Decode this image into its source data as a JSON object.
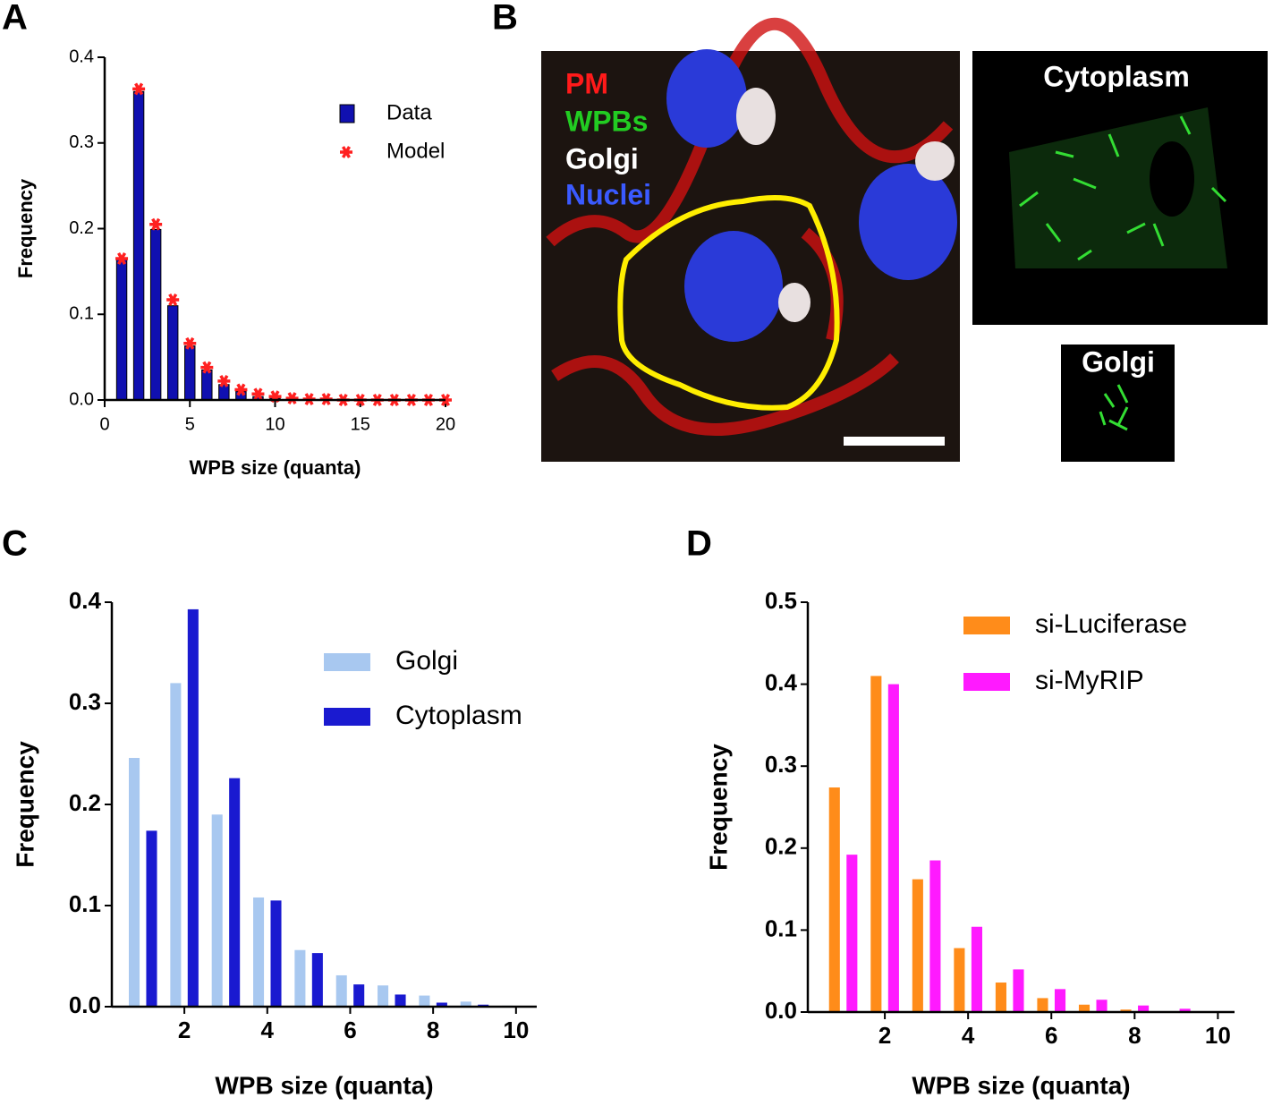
{
  "chart_data": [
    {
      "type": "bar",
      "label": "A",
      "ylabel": "Frequency",
      "xlabel": "WPB size (quanta)",
      "x": [
        1,
        2,
        3,
        4,
        5,
        6,
        7,
        8,
        9,
        10,
        11,
        12,
        13,
        14,
        15,
        16,
        17,
        18,
        19,
        20
      ],
      "series": [
        {
          "name": "Data",
          "color": "#1010b0",
          "mark": "bar",
          "values": [
            0.164,
            0.36,
            0.199,
            0.11,
            0.063,
            0.035,
            0.018,
            0.01,
            0.004,
            0.002,
            0.001,
            0,
            0,
            0,
            0,
            0,
            0,
            0,
            0,
            0
          ]
        },
        {
          "name": "Model",
          "color": "#ff2020",
          "mark": "star",
          "values": [
            0.165,
            0.363,
            0.205,
            0.117,
            0.066,
            0.038,
            0.022,
            0.012,
            0.007,
            0.004,
            0.002,
            0.001,
            0.001,
            0,
            0,
            0,
            0,
            0,
            0,
            0
          ]
        }
      ],
      "xlim": [
        0,
        20
      ],
      "xticks": [
        0,
        5,
        10,
        15,
        20
      ],
      "ylim": [
        0,
        0.4
      ],
      "yticks": [
        {
          "value": 0,
          "label": "0.0"
        },
        0.1,
        0.2,
        0.3,
        0.4
      ],
      "legend": "upper right"
    },
    {
      "type": "bar",
      "label": "C",
      "ylabel": "Frequency",
      "xlabel": "WPB size (quanta)",
      "x": [
        1,
        2,
        3,
        4,
        5,
        6,
        7,
        8,
        9,
        10
      ],
      "series": [
        {
          "name": "Golgi",
          "color": "#a8c8f0",
          "mark": "bar",
          "values": [
            0.246,
            0.32,
            0.19,
            0.108,
            0.056,
            0.031,
            0.021,
            0.011,
            0.005,
            0.001
          ]
        },
        {
          "name": "Cytoplasm",
          "color": "#1a1ad0",
          "mark": "bar",
          "values": [
            0.174,
            0.393,
            0.226,
            0.105,
            0.053,
            0.022,
            0.012,
            0.004,
            0.002,
            0
          ]
        }
      ],
      "xlim": [
        0.25,
        10.5
      ],
      "xticks": [
        2,
        4,
        6,
        8,
        10
      ],
      "ylim": [
        0,
        0.4
      ],
      "yticks": [
        {
          "value": 0,
          "label": "0.0"
        },
        0.1,
        0.2,
        0.3,
        0.4
      ],
      "legend": "upper right"
    },
    {
      "type": "bar",
      "label": "D",
      "ylabel": "Frequency",
      "xlabel": "WPB size (quanta)",
      "x": [
        1,
        2,
        3,
        4,
        5,
        6,
        7,
        8,
        9,
        10
      ],
      "series": [
        {
          "name": "si-Luciferase",
          "color": "#ff8c1a",
          "mark": "bar",
          "values": [
            0.274,
            0.41,
            0.162,
            0.078,
            0.036,
            0.017,
            0.009,
            0.003,
            0.001,
            0
          ]
        },
        {
          "name": "si-MyRIP",
          "color": "#ff1aff",
          "mark": "bar",
          "values": [
            0.192,
            0.4,
            0.185,
            0.104,
            0.052,
            0.028,
            0.015,
            0.008,
            0.004,
            0.001
          ]
        }
      ],
      "xlim": [
        0.15,
        10.4
      ],
      "xticks": [
        2,
        4,
        6,
        8,
        10
      ],
      "ylim": [
        0,
        0.5
      ],
      "yticks": [
        {
          "value": 0,
          "label": "0.0"
        },
        0.1,
        0.2,
        0.3,
        0.4,
        0.5
      ],
      "legend": "upper right"
    }
  ],
  "image_panel": {
    "label": "B",
    "channels": [
      "PM",
      "WPBs",
      "Golgi",
      "Nuclei"
    ],
    "inset_1": "Cytoplasm",
    "inset_2": "Golgi"
  }
}
